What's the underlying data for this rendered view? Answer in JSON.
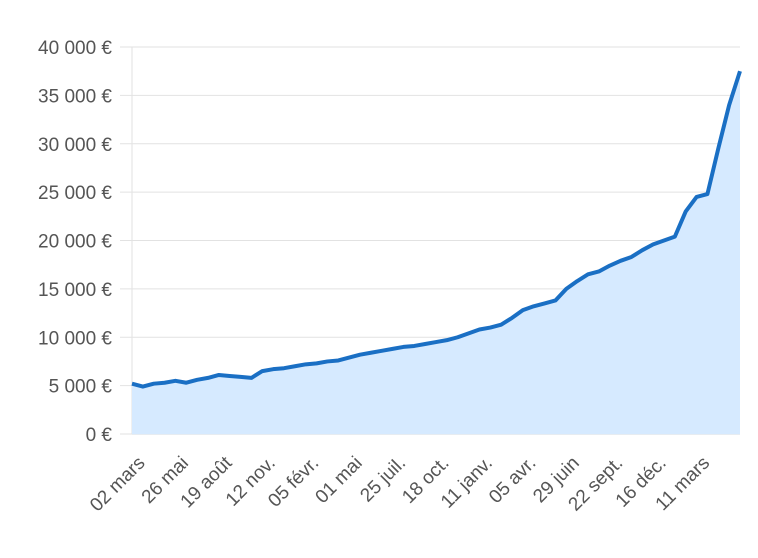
{
  "chart_data": {
    "type": "area",
    "categories": [
      "02 mars",
      null,
      null,
      null,
      "26 mai",
      null,
      null,
      null,
      "19 août",
      null,
      null,
      null,
      "12 nov.",
      null,
      null,
      null,
      "05 févr.",
      null,
      null,
      null,
      "01 mai",
      null,
      null,
      null,
      "25 juil.",
      null,
      null,
      null,
      "18 oct.",
      null,
      null,
      null,
      "11 janv.",
      null,
      null,
      null,
      "05 avr.",
      null,
      null,
      null,
      "29 juin",
      null,
      null,
      null,
      "22 sept.",
      null,
      null,
      null,
      "16 déc.",
      null,
      null,
      null,
      "11 mars",
      null,
      null,
      null,
      null
    ],
    "values": [
      5200,
      4900,
      5200,
      5300,
      5500,
      5300,
      5600,
      5800,
      6100,
      6000,
      5900,
      5800,
      6500,
      6700,
      6800,
      7000,
      7200,
      7300,
      7500,
      7600,
      7900,
      8200,
      8400,
      8600,
      8800,
      9000,
      9100,
      9300,
      9500,
      9700,
      10000,
      10400,
      10800,
      11000,
      11300,
      12000,
      12800,
      13200,
      13500,
      13800,
      15000,
      15800,
      16500,
      16800,
      17400,
      17900,
      18300,
      19000,
      19600,
      20000,
      20400,
      23000,
      24500,
      24800,
      29500,
      34000,
      37500
    ],
    "color": "#1a6fc4",
    "fill_color": "#d6eaff",
    "ylim": [
      0,
      40000
    ],
    "yticks": [
      {
        "value": 0,
        "label": "0 €"
      },
      {
        "value": 5000,
        "label": "5 000 €"
      },
      {
        "value": 10000,
        "label": "10 000 €"
      },
      {
        "value": 15000,
        "label": "15 000 €"
      },
      {
        "value": 20000,
        "label": "20 000 €"
      },
      {
        "value": 25000,
        "label": "25 000 €"
      },
      {
        "value": 30000,
        "label": "30 000 €"
      },
      {
        "value": 35000,
        "label": "35 000 €"
      },
      {
        "value": 40000,
        "label": "40 000 €"
      }
    ],
    "grid": true
  }
}
